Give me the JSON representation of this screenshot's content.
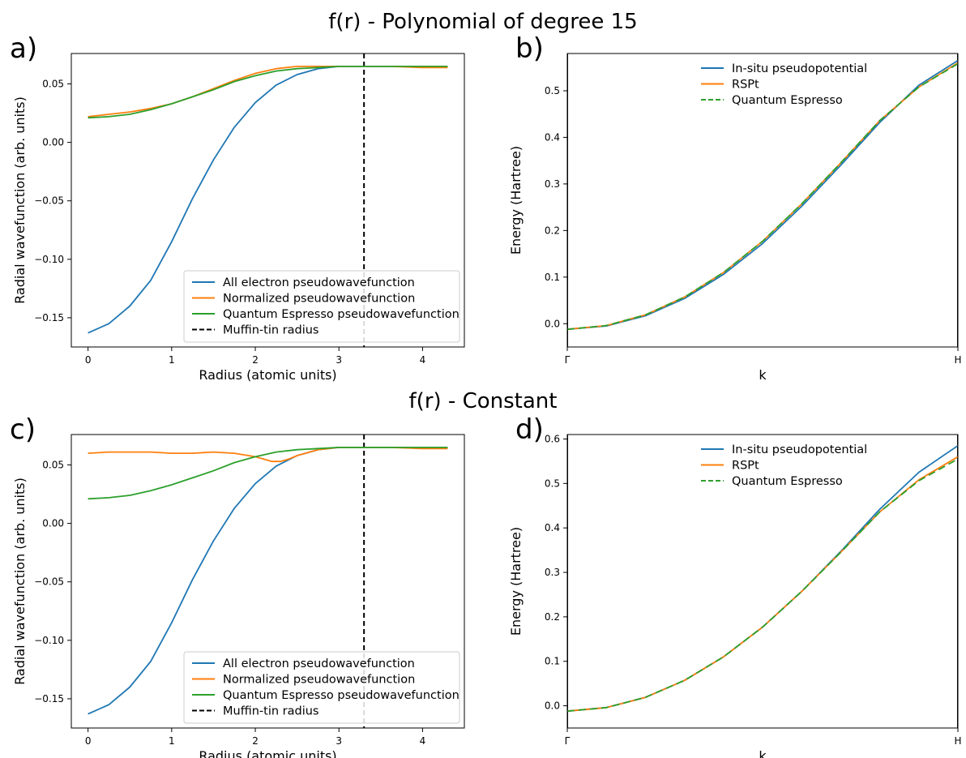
{
  "figure": {
    "row_titles": [
      "f(r) - Polynomial of degree 15",
      "f(r) - Constant"
    ],
    "colors": {
      "blue": "#1f77b4",
      "orange": "#ff7f0e",
      "green": "#2ca02c",
      "black": "#000000"
    }
  },
  "chart_data": [
    {
      "panel": "a)",
      "type": "line",
      "xlabel": "Radius (atomic units)",
      "ylabel": "Radial wavefunction (arb. units)",
      "xlim": [
        -0.2,
        4.5
      ],
      "ylim": [
        -0.175,
        0.076
      ],
      "xticks": [
        0,
        1,
        2,
        3,
        4
      ],
      "yticks": [
        -0.15,
        -0.1,
        -0.05,
        0.0,
        0.05
      ],
      "ytick_labels": [
        "−0.15",
        "−0.10",
        "−0.05",
        "0.00",
        "0.05"
      ],
      "legend_position": "lower-right",
      "vline": {
        "x": 3.3,
        "name": "Muffin-tin radius",
        "style": "dashed",
        "color": "#000000"
      },
      "series": [
        {
          "name": "All electron pseudowavefunction",
          "color": "#1f77b4",
          "x": [
            0,
            0.25,
            0.5,
            0.75,
            1.0,
            1.25,
            1.5,
            1.75,
            2.0,
            2.25,
            2.5,
            2.75,
            3.0,
            3.3,
            3.6,
            4.0,
            4.3
          ],
          "y": [
            -0.163,
            -0.155,
            -0.14,
            -0.118,
            -0.085,
            -0.048,
            -0.015,
            0.013,
            0.034,
            0.049,
            0.058,
            0.063,
            0.065,
            0.065,
            0.065,
            0.065,
            0.065
          ]
        },
        {
          "name": "Normalized pseudowavefunction",
          "color": "#ff7f0e",
          "x": [
            0,
            0.25,
            0.5,
            0.75,
            1.0,
            1.25,
            1.5,
            1.75,
            2.0,
            2.25,
            2.5,
            2.75,
            3.0,
            3.3,
            3.6,
            4.0,
            4.3
          ],
          "y": [
            0.022,
            0.024,
            0.026,
            0.029,
            0.033,
            0.039,
            0.046,
            0.053,
            0.059,
            0.063,
            0.065,
            0.065,
            0.065,
            0.065,
            0.065,
            0.064,
            0.064
          ]
        },
        {
          "name": "Quantum Espresso pseudowavefunction",
          "color": "#2ca02c",
          "x": [
            0,
            0.25,
            0.5,
            0.75,
            1.0,
            1.25,
            1.5,
            1.75,
            2.0,
            2.25,
            2.5,
            2.75,
            3.0,
            3.3,
            3.6,
            4.0,
            4.3
          ],
          "y": [
            0.021,
            0.022,
            0.024,
            0.028,
            0.033,
            0.039,
            0.045,
            0.052,
            0.057,
            0.061,
            0.063,
            0.064,
            0.065,
            0.065,
            0.065,
            0.065,
            0.065
          ]
        }
      ]
    },
    {
      "panel": "b)",
      "type": "line",
      "xlabel": "k",
      "ylabel": "Energy (Hartree)",
      "xlim": [
        0,
        1
      ],
      "ylim": [
        -0.05,
        0.58
      ],
      "xticks": [
        0,
        1
      ],
      "xtick_labels": [
        "Γ",
        "H"
      ],
      "yticks": [
        0.0,
        0.1,
        0.2,
        0.3,
        0.4,
        0.5
      ],
      "ytick_labels": [
        "0.0",
        "0.1",
        "0.2",
        "0.3",
        "0.4",
        "0.5"
      ],
      "legend_position": "top-center",
      "vlines": [
        0,
        1
      ],
      "series": [
        {
          "name": "In-situ pseudopotential",
          "color": "#1f77b4",
          "x": [
            0,
            0.1,
            0.2,
            0.3,
            0.4,
            0.5,
            0.6,
            0.7,
            0.8,
            0.9,
            1.0
          ],
          "y": [
            -0.012,
            -0.005,
            0.017,
            0.054,
            0.106,
            0.172,
            0.252,
            0.34,
            0.432,
            0.512,
            0.565
          ]
        },
        {
          "name": "RSPt",
          "color": "#ff7f0e",
          "x": [
            0,
            0.1,
            0.2,
            0.3,
            0.4,
            0.5,
            0.6,
            0.7,
            0.8,
            0.9,
            1.0
          ],
          "y": [
            -0.012,
            -0.004,
            0.019,
            0.057,
            0.11,
            0.177,
            0.257,
            0.345,
            0.436,
            0.508,
            0.56
          ]
        },
        {
          "name": "Quantum Espresso",
          "color": "#2ca02c",
          "style": "dashed",
          "x": [
            0,
            0.1,
            0.2,
            0.3,
            0.4,
            0.5,
            0.6,
            0.7,
            0.8,
            0.9,
            1.0
          ],
          "y": [
            -0.012,
            -0.004,
            0.019,
            0.057,
            0.11,
            0.177,
            0.257,
            0.345,
            0.436,
            0.508,
            0.558
          ]
        }
      ]
    },
    {
      "panel": "c)",
      "type": "line",
      "xlabel": "Radius (atomic units)",
      "ylabel": "Radial wavefunction (arb. units)",
      "xlim": [
        -0.2,
        4.5
      ],
      "ylim": [
        -0.175,
        0.076
      ],
      "xticks": [
        0,
        1,
        2,
        3,
        4
      ],
      "yticks": [
        -0.15,
        -0.1,
        -0.05,
        0.0,
        0.05
      ],
      "ytick_labels": [
        "−0.15",
        "−0.10",
        "−0.05",
        "0.00",
        "0.05"
      ],
      "legend_position": "lower-right",
      "vline": {
        "x": 3.3,
        "name": "Muffin-tin radius",
        "style": "dashed",
        "color": "#000000"
      },
      "series": [
        {
          "name": "All electron pseudowavefunction",
          "color": "#1f77b4",
          "x": [
            0,
            0.25,
            0.5,
            0.75,
            1.0,
            1.25,
            1.5,
            1.75,
            2.0,
            2.25,
            2.5,
            2.75,
            3.0,
            3.3,
            3.6,
            4.0,
            4.3
          ],
          "y": [
            -0.163,
            -0.155,
            -0.14,
            -0.118,
            -0.085,
            -0.048,
            -0.015,
            0.013,
            0.034,
            0.049,
            0.058,
            0.063,
            0.065,
            0.065,
            0.065,
            0.065,
            0.065
          ]
        },
        {
          "name": "Normalized pseudowavefunction",
          "color": "#ff7f0e",
          "x": [
            0,
            0.25,
            0.5,
            0.75,
            1.0,
            1.25,
            1.5,
            1.75,
            2.0,
            2.1,
            2.2,
            2.3,
            2.4,
            2.5,
            2.75,
            3.0,
            3.3,
            3.6,
            4.0,
            4.3
          ],
          "y": [
            0.06,
            0.061,
            0.061,
            0.061,
            0.06,
            0.06,
            0.061,
            0.06,
            0.057,
            0.055,
            0.053,
            0.053,
            0.055,
            0.058,
            0.063,
            0.065,
            0.065,
            0.065,
            0.064,
            0.064
          ]
        },
        {
          "name": "Quantum Espresso pseudowavefunction",
          "color": "#2ca02c",
          "x": [
            0,
            0.25,
            0.5,
            0.75,
            1.0,
            1.25,
            1.5,
            1.75,
            2.0,
            2.25,
            2.5,
            2.75,
            3.0,
            3.3,
            3.6,
            4.0,
            4.3
          ],
          "y": [
            0.021,
            0.022,
            0.024,
            0.028,
            0.033,
            0.039,
            0.045,
            0.052,
            0.057,
            0.061,
            0.063,
            0.064,
            0.065,
            0.065,
            0.065,
            0.065,
            0.065
          ]
        }
      ]
    },
    {
      "panel": "d)",
      "type": "line",
      "xlabel": "k",
      "ylabel": "Energy (Hartree)",
      "xlim": [
        0,
        1
      ],
      "ylim": [
        -0.05,
        0.61
      ],
      "xticks": [
        0,
        1
      ],
      "xtick_labels": [
        "Γ",
        "H"
      ],
      "yticks": [
        0.0,
        0.1,
        0.2,
        0.3,
        0.4,
        0.5,
        0.6
      ],
      "ytick_labels": [
        "0.0",
        "0.1",
        "0.2",
        "0.3",
        "0.4",
        "0.5",
        "0.6"
      ],
      "legend_position": "top-center",
      "vlines": [
        0,
        1
      ],
      "series": [
        {
          "name": "In-situ pseudopotential",
          "color": "#1f77b4",
          "x": [
            0,
            0.1,
            0.2,
            0.3,
            0.4,
            0.5,
            0.6,
            0.7,
            0.8,
            0.9,
            1.0
          ],
          "y": [
            -0.012,
            -0.004,
            0.019,
            0.057,
            0.11,
            0.177,
            0.257,
            0.347,
            0.442,
            0.525,
            0.585
          ]
        },
        {
          "name": "RSPt",
          "color": "#ff7f0e",
          "x": [
            0,
            0.1,
            0.2,
            0.3,
            0.4,
            0.5,
            0.6,
            0.7,
            0.8,
            0.9,
            1.0
          ],
          "y": [
            -0.012,
            -0.004,
            0.019,
            0.057,
            0.11,
            0.177,
            0.257,
            0.345,
            0.436,
            0.508,
            0.56
          ]
        },
        {
          "name": "Quantum Espresso",
          "color": "#2ca02c",
          "style": "dashed",
          "x": [
            0,
            0.1,
            0.2,
            0.3,
            0.4,
            0.5,
            0.6,
            0.7,
            0.8,
            0.9,
            1.0
          ],
          "y": [
            -0.012,
            -0.004,
            0.019,
            0.057,
            0.11,
            0.177,
            0.257,
            0.345,
            0.436,
            0.506,
            0.555
          ]
        }
      ]
    }
  ]
}
